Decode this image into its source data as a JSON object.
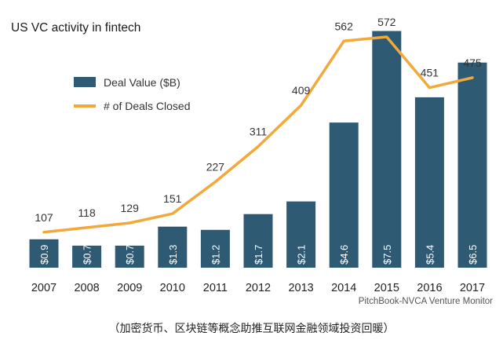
{
  "chart_data": {
    "type": "bar",
    "title": "US VC activity in fintech",
    "categories": [
      "2007",
      "2008",
      "2009",
      "2010",
      "2011",
      "2012",
      "2013",
      "2014",
      "2015",
      "2016",
      "2017"
    ],
    "series": [
      {
        "name": "Deal Value ($B)",
        "type": "bar",
        "values": [
          0.9,
          0.7,
          0.7,
          1.3,
          1.2,
          1.7,
          2.1,
          4.6,
          7.5,
          5.4,
          6.5
        ],
        "labels": [
          "$0.9",
          "$0.7",
          "$0.7",
          "$1.3",
          "$1.2",
          "$1.7",
          "$2.1",
          "$4.6",
          "$7.5",
          "$5.4",
          "$6.5"
        ],
        "color": "#2e5a74"
      },
      {
        "name": "# of Deals Closed",
        "type": "line",
        "values": [
          107,
          118,
          129,
          151,
          227,
          311,
          409,
          562,
          572,
          451,
          475
        ],
        "labels": [
          "107",
          "118",
          "129",
          "151",
          "227",
          "311",
          "409",
          "562",
          "572",
          "451",
          "475"
        ],
        "color": "#f2a93b"
      }
    ],
    "legend": "upper-left",
    "grid": false,
    "source": "PitchBook-NVCA Venture Monitor"
  },
  "caption": "（加密货币、区块链等概念助推互联网金融领域投资回暖）"
}
